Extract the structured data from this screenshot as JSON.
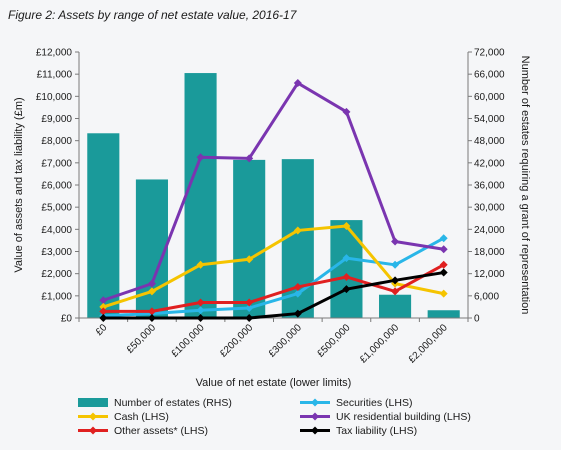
{
  "page": {
    "title": "Figure 2: Assets by range of net estate value, 2016-17"
  },
  "chart_data": {
    "type": "bar+line",
    "title": "Figure 2: Assets by range of net estate value, 2016-17",
    "xlabel": "Value of net estate (lower limits)",
    "ylabel_left": "Value of assets and tax liability (£m)",
    "ylabel_right": "Number of estates requiring a grant of representation",
    "ylim_left": [
      0,
      12000
    ],
    "ylim_right": [
      0,
      72000
    ],
    "left_ticks": [
      "£0",
      "£1,000",
      "£2,000",
      "£3,000",
      "£4,000",
      "£5,000",
      "£6,000",
      "£7,000",
      "£8,000",
      "£9,000",
      "£10,000",
      "£11,000",
      "£12,000"
    ],
    "right_ticks": [
      "0",
      "6,000",
      "12,000",
      "18,000",
      "24,000",
      "30,000",
      "36,000",
      "42,000",
      "48,000",
      "54,000",
      "60,000",
      "66,000",
      "72,000"
    ],
    "categories": [
      "£0",
      "£50,000",
      "£100,000",
      "£200,000",
      "£300,000",
      "£500,000",
      "£1,000,000",
      "£2,000,000"
    ],
    "bars": {
      "name": "Number of estates (RHS)",
      "color": "#1a9a9a",
      "values": [
        50000,
        37500,
        66300,
        42800,
        43000,
        26500,
        6300,
        2100
      ]
    },
    "series": [
      {
        "name": "Securities (LHS)",
        "color": "#29b6e8",
        "values": [
          100,
          200,
          350,
          450,
          1100,
          2700,
          2400,
          3600
        ]
      },
      {
        "name": "UK residential building (LHS)",
        "color": "#7a35b0",
        "values": [
          800,
          1550,
          7250,
          7200,
          10600,
          9300,
          3450,
          3100
        ]
      },
      {
        "name": "Cash (LHS)",
        "color": "#f5c400",
        "values": [
          500,
          1200,
          2400,
          2650,
          3950,
          4150,
          1550,
          1100
        ]
      },
      {
        "name": "Other assets* (LHS)",
        "color": "#e02020",
        "values": [
          300,
          300,
          700,
          700,
          1400,
          1850,
          1200,
          2400
        ]
      },
      {
        "name": "Tax liability (LHS)",
        "color": "#000000",
        "values": [
          0,
          0,
          0,
          0,
          200,
          1300,
          1700,
          2050
        ]
      }
    ],
    "legend": {
      "placement": "bottom",
      "entries": [
        {
          "name": "Number of estates (RHS)",
          "kind": "bar",
          "color": "#1a9a9a"
        },
        {
          "name": "Securities (LHS)",
          "kind": "line",
          "color": "#29b6e8"
        },
        {
          "name": "Cash (LHS)",
          "kind": "line",
          "color": "#f5c400"
        },
        {
          "name": "UK residential building (LHS)",
          "kind": "line",
          "color": "#7a35b0"
        },
        {
          "name": "Other assets* (LHS)",
          "kind": "line",
          "color": "#e02020"
        },
        {
          "name": "Tax liability (LHS)",
          "kind": "line",
          "color": "#000000"
        }
      ]
    },
    "grid": false
  }
}
